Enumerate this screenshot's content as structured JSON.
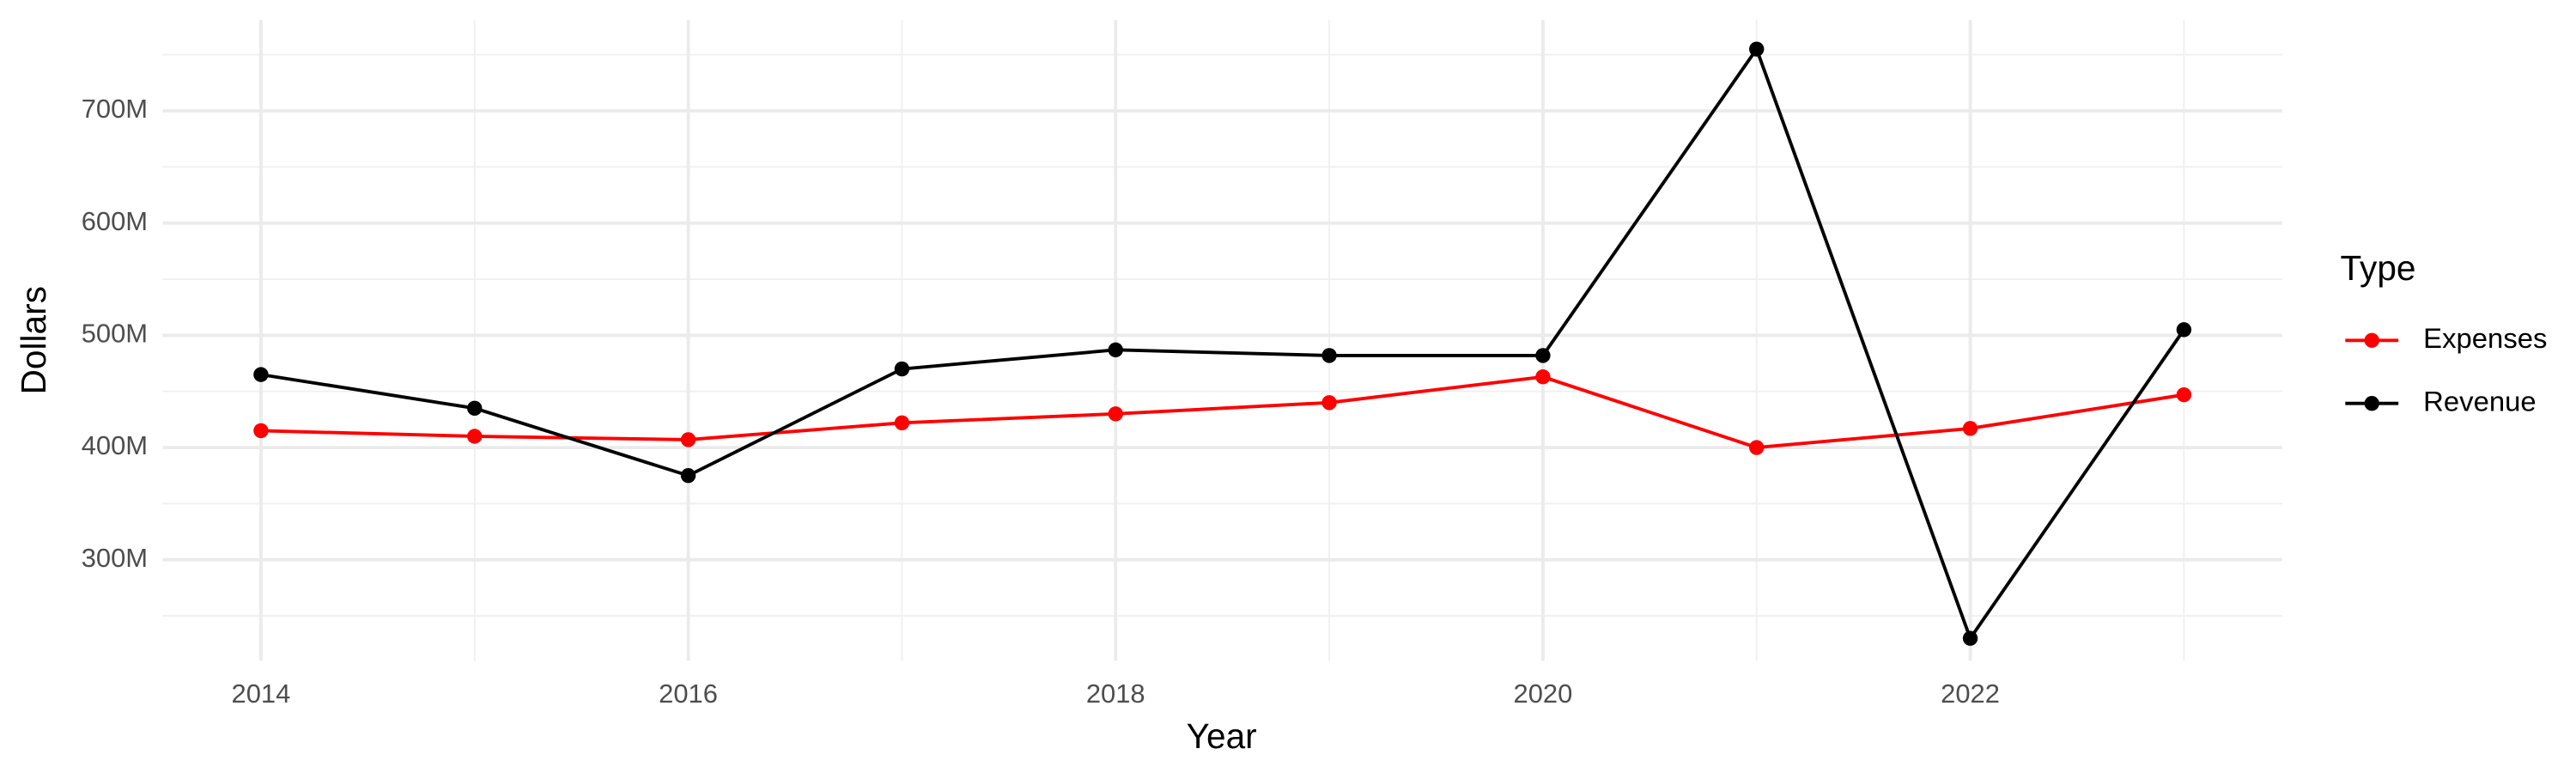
{
  "chart_data": {
    "type": "line",
    "x_label": "Year",
    "y_label": "Dollars",
    "legend_title": "Type",
    "legend_position": "right",
    "grid": true,
    "x": [
      2014,
      2015,
      2016,
      2017,
      2018,
      2019,
      2020,
      2021,
      2022,
      2023
    ],
    "series": [
      {
        "name": "Expenses",
        "color": "#ff0000",
        "values": [
          415000000,
          410000000,
          407000000,
          422000000,
          430000000,
          440000000,
          463000000,
          400000000,
          417000000,
          447000000
        ]
      },
      {
        "name": "Revenue",
        "color": "#000000",
        "values": [
          465000000,
          435000000,
          375000000,
          470000000,
          487000000,
          482000000,
          482000000,
          755000000,
          230000000,
          505000000
        ]
      }
    ],
    "xlim": [
      2013.54,
      2023.46
    ],
    "xticks": [
      2014,
      2016,
      2018,
      2020,
      2022
    ],
    "ylim": [
      210000000,
      781000000
    ],
    "yticks": [
      {
        "value": 300000000,
        "label": "300M"
      },
      {
        "value": 400000000,
        "label": "400M"
      },
      {
        "value": 500000000,
        "label": "500M"
      },
      {
        "value": 600000000,
        "label": "600M"
      },
      {
        "value": 700000000,
        "label": "700M"
      }
    ]
  }
}
